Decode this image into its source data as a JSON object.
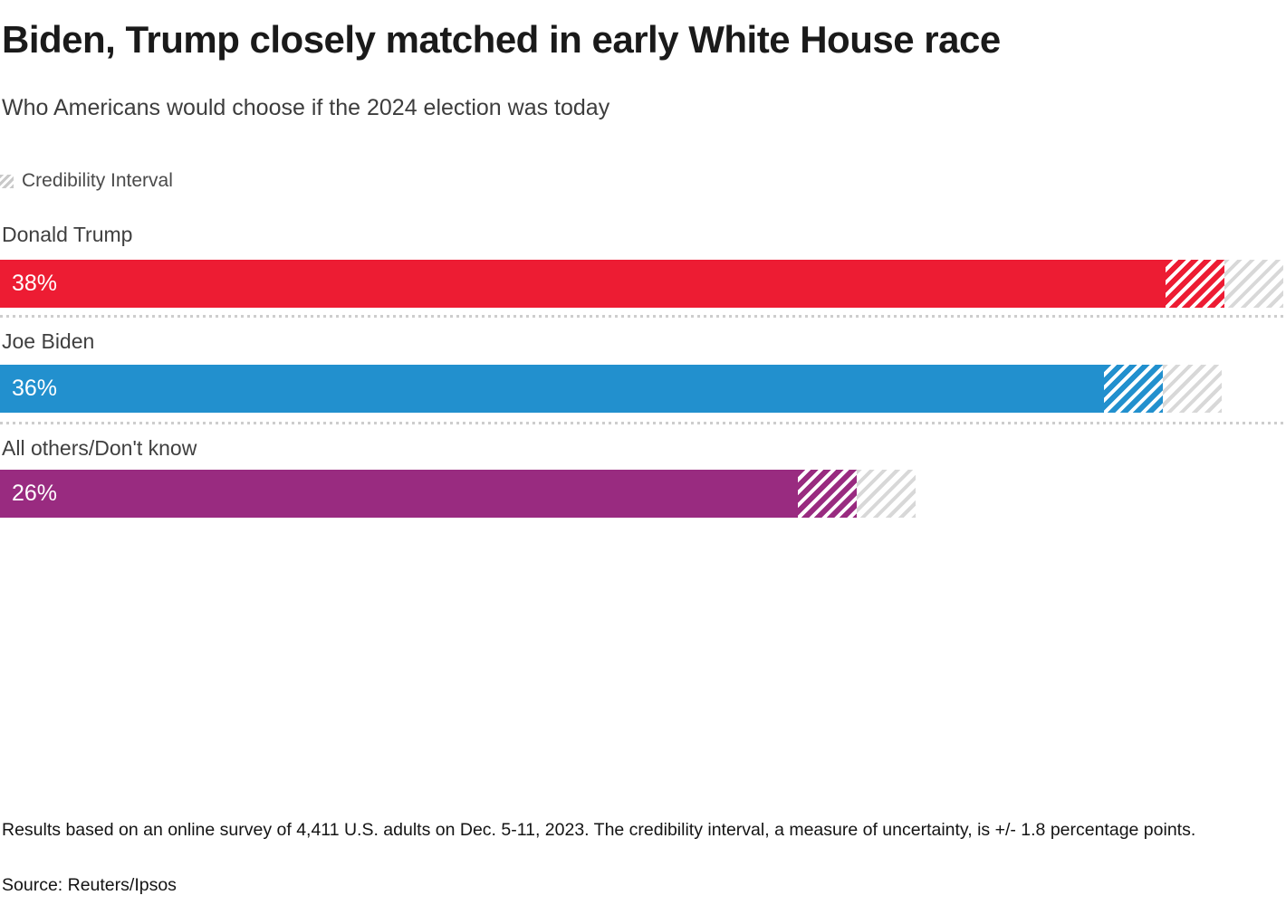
{
  "chart_data": {
    "type": "bar",
    "orientation": "horizontal",
    "title": "Biden, Trump closely matched in early White House race",
    "subtitle": "Who Americans would choose if the 2024 election was today",
    "unit": "percent",
    "xlim": [
      0,
      42
    ],
    "grid": false,
    "legend_position": "top-left",
    "legend": {
      "label": "Credibility Interval",
      "swatch": "diagonal-hatch"
    },
    "credibility_interval_points": 1.8,
    "categories": [
      "Donald Trump",
      "Joe Biden",
      "All others/Don't know"
    ],
    "values": [
      38,
      36,
      26
    ],
    "bars": [
      {
        "label": "Donald Trump",
        "value": 38,
        "value_label": "38%",
        "color": "#ed1c33"
      },
      {
        "label": "Joe Biden",
        "value": 36,
        "value_label": "36%",
        "color": "#2290ce"
      },
      {
        "label": "All others/Don't know",
        "value": 26,
        "value_label": "26%",
        "color": "#992b80"
      }
    ],
    "hatch_stripe_on_bar": "rgba(255,255,255,0.62)",
    "hatch_stripe_beyond_bar": "#d8d8d8",
    "separator_color": "#cdcdcd"
  },
  "footer": {
    "note": "Results based on an online survey of 4,411 U.S. adults on Dec. 5-11, 2023. The credibility interval, a measure of uncertainty, is +/- 1.8 percentage points.",
    "source": "Source: Reuters/Ipsos"
  }
}
